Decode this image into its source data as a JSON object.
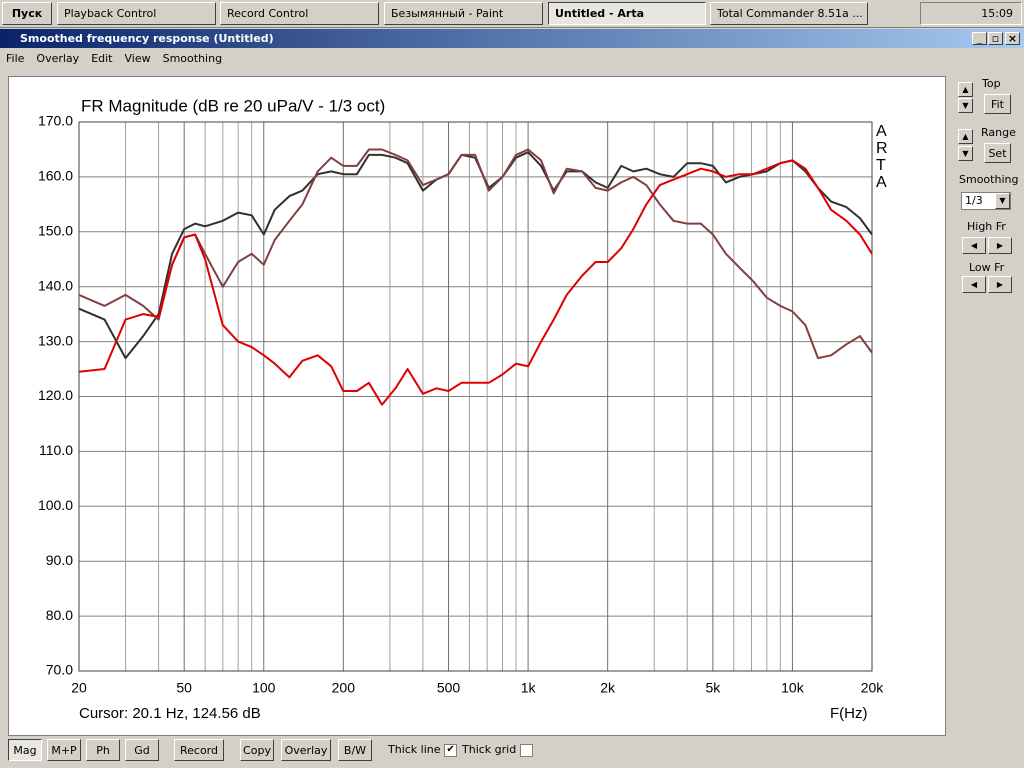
{
  "taskbar": {
    "start": "Пуск",
    "tasks": [
      "Playback Control",
      "Record Control",
      "Безымянный - Paint",
      "Untitled - Arta",
      "Total Commander 8.51a ..."
    ],
    "active_task": 3,
    "clock": "15:09"
  },
  "window": {
    "title": "Smoothed frequency response (Untitled)",
    "menu": [
      "File",
      "Overlay",
      "Edit",
      "View",
      "Smoothing"
    ]
  },
  "side_panel": {
    "top": "Top",
    "fit": "Fit",
    "range": "Range",
    "set": "Set",
    "smoothing": "Smoothing",
    "smoothing_value": "1/3",
    "high_fr": "High Fr",
    "low_fr": "Low Fr"
  },
  "toolbar": {
    "buttons": [
      "Mag",
      "M+P",
      "Ph",
      "Gd",
      "Record",
      "Copy",
      "Overlay",
      "B/W"
    ],
    "thick_line": {
      "label": "Thick line",
      "checked": true
    },
    "thick_grid": {
      "label": "Thick grid",
      "checked": false
    }
  },
  "chart_data": {
    "type": "line",
    "title": "FR Magnitude (dB re 20 uPa/V - 1/3 oct)",
    "watermark": "ARTA",
    "cursor": "Cursor: 20.1 Hz, 124.56 dB",
    "x_label": "F(Hz)",
    "log_x": true,
    "grid": true,
    "xlim": [
      20,
      20000
    ],
    "ylim": [
      70,
      170
    ],
    "xticks": [
      20,
      50,
      100,
      200,
      500,
      {
        "value": 1000,
        "label": "1k"
      },
      {
        "value": 2000,
        "label": "2k"
      },
      {
        "value": 5000,
        "label": "5k"
      },
      {
        "value": 10000,
        "label": "10k"
      },
      {
        "value": 20000,
        "label": "20k"
      }
    ],
    "xgrid": [
      30,
      40,
      60,
      70,
      80,
      90,
      300,
      400,
      600,
      700,
      800,
      900,
      3000,
      4000,
      6000,
      7000,
      8000,
      9000
    ],
    "yticks": [
      {
        "value": 70,
        "label": "70.0"
      },
      {
        "value": 80,
        "label": "80.0"
      },
      {
        "value": 90,
        "label": "90.0"
      },
      {
        "value": 100,
        "label": "100.0"
      },
      {
        "value": 110,
        "label": "110.0"
      },
      {
        "value": 120,
        "label": "120.0"
      },
      {
        "value": 130,
        "label": "130.0"
      },
      {
        "value": 140,
        "label": "140.0"
      },
      {
        "value": 150,
        "label": "150.0"
      },
      {
        "value": 160,
        "label": "160.0"
      },
      {
        "value": 170,
        "label": "170.0"
      }
    ],
    "x": [
      20,
      25,
      30,
      35,
      40,
      45,
      50,
      55,
      60,
      70,
      80,
      90,
      100,
      110,
      125,
      140,
      160,
      180,
      200,
      225,
      250,
      280,
      315,
      350,
      400,
      450,
      500,
      560,
      630,
      710,
      800,
      900,
      1000,
      1120,
      1250,
      1400,
      1600,
      1800,
      2000,
      2250,
      2500,
      2800,
      3150,
      3550,
      4000,
      4500,
      5000,
      5600,
      6300,
      7100,
      8000,
      9000,
      10000,
      11200,
      12500,
      14000,
      16000,
      18000,
      20000
    ],
    "series": [
      {
        "color": "#303030",
        "values": [
          136,
          134,
          127,
          131,
          135,
          146,
          150.5,
          151.5,
          151,
          152,
          153.5,
          153,
          149.5,
          154,
          156.5,
          157.5,
          160.5,
          161,
          160.5,
          160.5,
          164,
          164,
          163.5,
          162.5,
          157.5,
          159.5,
          160.5,
          164,
          163.5,
          158,
          160,
          163.5,
          164.5,
          162,
          157.5,
          161,
          161,
          159,
          158,
          162,
          161,
          161.5,
          160.5,
          160,
          162.5,
          162.5,
          162,
          159,
          160,
          160.5,
          161,
          162.5,
          163,
          161,
          158,
          155.5,
          154.5,
          152.5,
          149.5
        ]
      },
      {
        "color": "#804040",
        "values": [
          138.5,
          136.5,
          138.5,
          136.5,
          134,
          144,
          149,
          149.5,
          146,
          140,
          144.5,
          146,
          144,
          148.5,
          152,
          155,
          161,
          163.5,
          162,
          162,
          165,
          165,
          164,
          163,
          158.5,
          159.5,
          160.5,
          164,
          164,
          157.5,
          160,
          164,
          165,
          163,
          157,
          161.5,
          161,
          158,
          157.5,
          159,
          160,
          158.5,
          155,
          152,
          151.5,
          151.5,
          149.5,
          146,
          143.5,
          141,
          138,
          136.5,
          135.5,
          133,
          127,
          127.5,
          129.5,
          131,
          128
        ]
      },
      {
        "color": "#e00000",
        "values": [
          124.5,
          125,
          134,
          135,
          134.5,
          144,
          149,
          149.5,
          145,
          133,
          130,
          129,
          127.5,
          126,
          123.5,
          126.5,
          127.5,
          125.5,
          121,
          121,
          122.5,
          118.5,
          121.5,
          125,
          120.5,
          121.5,
          121,
          122.5,
          122.5,
          122.5,
          124,
          126,
          125.5,
          130,
          134,
          138.5,
          142,
          144.5,
          144.5,
          147,
          150.5,
          155,
          158.5,
          159.5,
          160.5,
          161.5,
          161,
          160,
          160.5,
          160.5,
          161.5,
          162.5,
          163,
          161.5,
          158,
          154,
          152,
          149.5,
          146
        ]
      }
    ]
  }
}
